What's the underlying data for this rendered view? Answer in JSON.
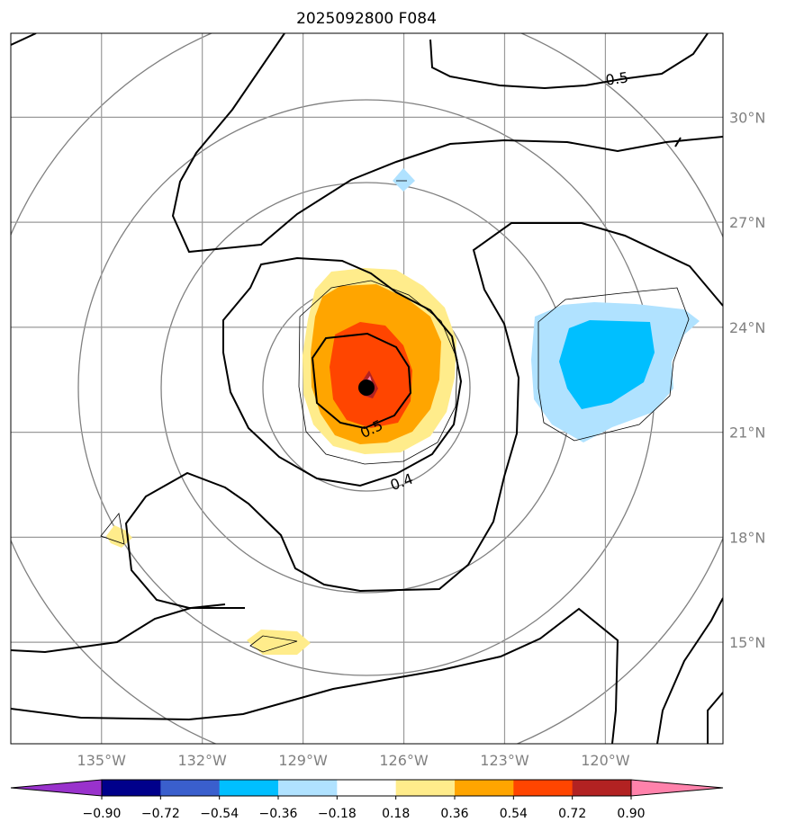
{
  "chart_data": {
    "type": "heatmap",
    "title": "2025092800 F084",
    "projection": "map",
    "lon_range": [
      -137.7,
      -116.5
    ],
    "lat_range": [
      12.1,
      32.4
    ],
    "lat_ticks": [
      {
        "value": 15,
        "label": "15°N"
      },
      {
        "value": 18,
        "label": "18°N"
      },
      {
        "value": 21,
        "label": "21°N"
      },
      {
        "value": 24,
        "label": "24°N"
      },
      {
        "value": 27,
        "label": "27°N"
      },
      {
        "value": 30,
        "label": "30°N"
      }
    ],
    "lon_ticks": [
      {
        "value": -135,
        "label": "135°W"
      },
      {
        "value": -132,
        "label": "132°W"
      },
      {
        "value": -129,
        "label": "129°W"
      },
      {
        "value": -126,
        "label": "126°W"
      },
      {
        "value": -123,
        "label": "123°W"
      },
      {
        "value": -120,
        "label": "120°W"
      }
    ],
    "center": {
      "lon": -127.0,
      "lat": 22.1
    },
    "range_ring_radii_deg": [
      3.5,
      6.5,
      9.5,
      12.5
    ],
    "colorbar": {
      "levels": [
        -0.9,
        -0.72,
        -0.54,
        -0.36,
        -0.18,
        0.18,
        0.36,
        0.54,
        0.72,
        0.9
      ],
      "labels": [
        "−0.90",
        "−0.72",
        "−0.54",
        "−0.36",
        "−0.18",
        "0.18",
        "0.36",
        "0.54",
        "0.72",
        "0.90"
      ],
      "colors": [
        "#9932cc",
        "#00008b",
        "#3a5fcd",
        "#00bfff",
        "#b0e2ff",
        "#ffffff",
        "#ffec8b",
        "#ffa500",
        "#ff4500",
        "#b22222",
        "#ff82ab"
      ]
    },
    "contour_labels": [
      {
        "text": "0.5",
        "lon": -124.0,
        "lat": 30.9
      },
      {
        "text": "0.5",
        "lon": -126.8,
        "lat": 21.0
      },
      {
        "text": "0.4",
        "lon": -126.0,
        "lat": 19.4
      }
    ],
    "shaded_regions": [
      {
        "name": "positive-anomaly-core",
        "level": 0.18,
        "lon": -127.1,
        "lat": 22.5
      },
      {
        "name": "negative-anomaly-east",
        "level": -0.18,
        "lon": -120.8,
        "lat": 23.3
      }
    ]
  }
}
